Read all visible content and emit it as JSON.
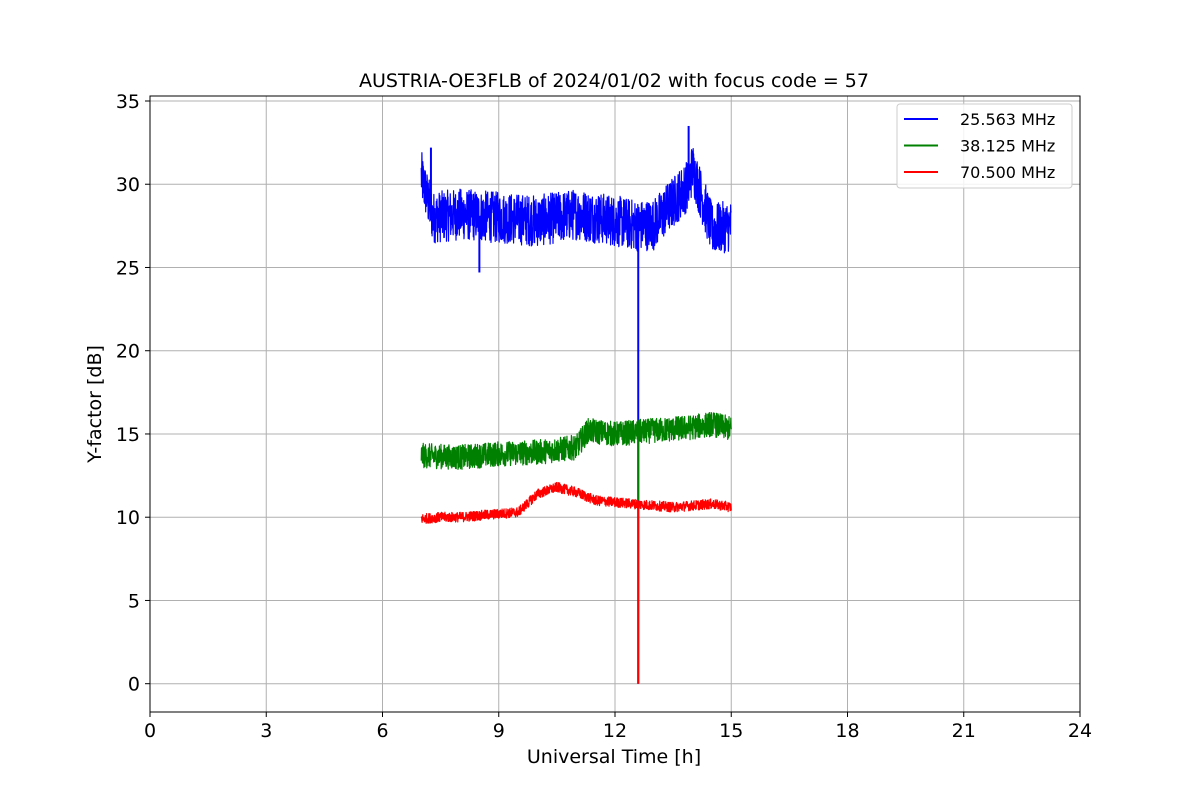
{
  "chart_data": {
    "type": "line",
    "title": "AUSTRIA-OE3FLB of 2024/01/02 with focus code = 57",
    "xlabel": "Universal Time [h]",
    "ylabel": "Y-factor [dB]",
    "xlim": [
      0,
      24
    ],
    "ylim": [
      -1.7,
      35.3
    ],
    "xticks": [
      0,
      3,
      6,
      9,
      12,
      15,
      18,
      21,
      24
    ],
    "yticks": [
      0,
      5,
      10,
      15,
      20,
      25,
      30,
      35
    ],
    "xtick_labels": [
      "0",
      "3",
      "6",
      "9",
      "12",
      "15",
      "18",
      "21",
      "24"
    ],
    "ytick_labels": [
      "0",
      "5",
      "10",
      "15",
      "20",
      "25",
      "30",
      "35"
    ],
    "grid": true,
    "legend_position": "top-right",
    "series": [
      {
        "name": "25.563 MHz",
        "color": "#0000ff",
        "band_low": 26.3,
        "band_high": 29.4,
        "x": [
          7.0,
          7.3,
          8.0,
          9.0,
          10.0,
          11.0,
          12.0,
          12.6,
          13.0,
          13.9,
          14.0,
          14.5,
          15.0
        ],
        "y": [
          30.5,
          28.0,
          28.2,
          28.0,
          27.8,
          28.2,
          27.8,
          27.5,
          27.6,
          30.0,
          31.0,
          27.3,
          27.5
        ],
        "spikes": [
          [
            7.25,
            32.2
          ],
          [
            8.5,
            24.7
          ],
          [
            13.9,
            33.5
          ],
          [
            12.6,
            0
          ]
        ]
      },
      {
        "name": "38.125 MHz",
        "color": "#008000",
        "band_low": 13.1,
        "band_high": 14.6,
        "x": [
          7.0,
          8.0,
          9.0,
          10.0,
          11.0,
          11.3,
          12.0,
          13.0,
          14.0,
          14.5,
          15.0
        ],
        "y": [
          13.7,
          13.6,
          13.8,
          13.9,
          14.2,
          15.2,
          15.0,
          15.2,
          15.4,
          15.6,
          15.3
        ],
        "spikes": [
          [
            12.6,
            11.0
          ]
        ]
      },
      {
        "name": "70.500 MHz",
        "color": "#ff0000",
        "band_low": 9.8,
        "band_high": 10.4,
        "x": [
          7.0,
          7.5,
          8.0,
          9.0,
          9.5,
          10.0,
          10.5,
          11.0,
          11.5,
          12.0,
          12.5,
          13.0,
          13.5,
          14.0,
          14.5,
          15.0
        ],
        "y": [
          9.9,
          10.0,
          10.0,
          10.2,
          10.3,
          11.4,
          11.8,
          11.5,
          11.0,
          10.9,
          10.8,
          10.7,
          10.6,
          10.7,
          10.8,
          10.6
        ],
        "spikes": [
          [
            12.6,
            0.0
          ]
        ]
      }
    ]
  }
}
